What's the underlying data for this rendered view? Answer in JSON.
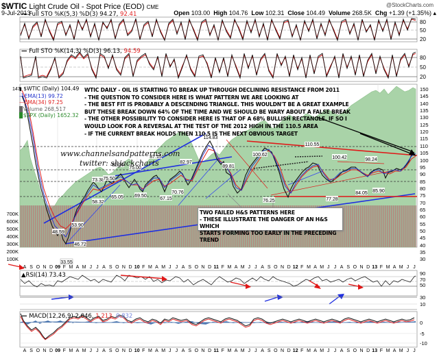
{
  "header": {
    "symbol": "$WTIC",
    "name": "Light Crude Oil - Spot Price (EOD)",
    "exchange": "CME",
    "date": "9-Jul-2013",
    "copyright": "@StockCharts.com",
    "quote": {
      "open_label": "Open",
      "open": "103.00",
      "high_label": "High",
      "high": "104.76",
      "low_label": "Low",
      "low": "102.31",
      "close_label": "Close",
      "close": "104.49",
      "volume_label": "Volume",
      "volume": "268.5K",
      "chg_label": "Chg",
      "chg": "+1.39 (+1.35%)"
    }
  },
  "panels": {
    "sto1": {
      "label": "Full STO %K(5,3) %D(3) 94.27,",
      "label_red": "92.41",
      "ticks": [
        "80",
        "50",
        "20"
      ]
    },
    "sto2": {
      "label": "Full STO %K(14,3) %D(3) 96.13,",
      "label_red": "94.59",
      "ticks": [
        "80",
        "50",
        "20"
      ]
    },
    "main": {
      "legend": {
        "symbol": "$WTIC (Daily) 104.49",
        "ema13": "EMA(13) 99.72",
        "ema34": "EMA(34) 97.25",
        "volume": "Volume 268,517",
        "spx": "$SPX (Daily) 1652.32"
      },
      "left_tick": "147",
      "annotation_lines": [
        "WTIC DAILY - OIL IS STARTING TO BREAK UP THROUGH DECLINING RESISTANCE FROM 2011",
        "- THE QUESTION TO CONSIDER HERE IS WHAT PATTERN WE ARE LOOKING AT",
        "- THE BEST FIT IS PROBABLY A DESCENDING TRIANGLE. THIS WOULDN'T BE A GREAT EXAMPLE",
        "BUT THESE BREAK DOWN 64% OF THE TIME AND WE SHOULD BE WARY ABOUT A FALSE BREAK",
        "- THE OTHER POSSIBILITY TO CONSIDER HERE IS THAT OF A 68% BULLISH RECTANGLE. IF SO I",
        "WOULD LOOK FOR A REVERSAL AT THE TEST OF THE 2012 HIGH IN THE 110.5 AREA",
        "- IF THE CURRENT BREAK HOLDS THEN 110.5 IS THE NEXT OBVIOUS TARGET"
      ],
      "watermark_line1": "www.channelsandpatterns.com",
      "watermark_line2": "twitter: shjackcharts",
      "callout_lines": [
        "TWO FAILED H&S PATTERNS HERE",
        "- THESE ILLUSTRATE THE DANGER OF AN H&S WHICH",
        "STARTS FORMING TOO EARLY IN THE PRECEDING TREND"
      ],
      "price_ticks": [
        "150",
        "145",
        "140",
        "135",
        "130",
        "125",
        "120",
        "115",
        "110",
        "105",
        "100",
        "95",
        "90",
        "85",
        "80",
        "75",
        "70",
        "65",
        "60",
        "55",
        "50",
        "45",
        "40",
        "35",
        "30"
      ],
      "volume_ticks": [
        "700K",
        "600K",
        "500K",
        "400K",
        "300K",
        "200K",
        "100K"
      ]
    },
    "rsi": {
      "label": "RSI(14) 73.43",
      "ticks": [
        "90",
        "70",
        "50",
        "30",
        "10"
      ]
    },
    "macd": {
      "label": "MACD(12,26,9) 2.046,",
      "label_red": "1.213,",
      "label_blue": "0.832",
      "ticks": [
        "0",
        "-5",
        "-10"
      ]
    }
  },
  "x_axis": [
    "A",
    "S",
    "O",
    "N",
    "D",
    "09",
    "F",
    "M",
    "A",
    "M",
    "J",
    "J",
    "A",
    "S",
    "O",
    "N",
    "D",
    "10",
    "F",
    "M",
    "A",
    "M",
    "J",
    "J",
    "A",
    "S",
    "O",
    "N",
    "D",
    "11",
    "F",
    "M",
    "A",
    "M",
    "J",
    "J",
    "A",
    "S",
    "O",
    "N",
    "D",
    "12",
    "F",
    "M",
    "A",
    "M",
    "J",
    "J",
    "A",
    "S",
    "O",
    "N",
    "D",
    "13",
    "F",
    "M",
    "A",
    "M",
    "J",
    "J"
  ],
  "colors": {
    "up": "#000000",
    "ema13": "#2233cc",
    "ema34": "#e02020",
    "spx_fill": "#a9d3a8",
    "volume_up": "#b07070",
    "volume_dn": "#c9a0a0",
    "trend_blue": "#1f2fe0",
    "trend_red": "#e01818",
    "grid": "#cccccc"
  },
  "chart_data": {
    "type": "line",
    "title": "$WTIC Light Crude Oil - Spot Price (EOD) CME, 9-Jul-2013",
    "xlabel": "",
    "ylabel": "Price",
    "ylim": [
      27,
      152
    ],
    "grid": true,
    "legend_position": "top-left",
    "x": [
      "2008-08",
      "2008-12",
      "2009-02",
      "2009-06",
      "2009-10",
      "2010-01",
      "2010-05",
      "2010-08",
      "2010-12",
      "2011-05",
      "2011-06",
      "2011-10",
      "2012-03",
      "2012-06",
      "2012-09",
      "2012-12",
      "2013-04",
      "2013-07"
    ],
    "series": [
      {
        "name": "$WTIC (Daily)",
        "values": [
          115,
          45,
          33.55,
          70,
          76,
          82,
          67,
          72,
          91,
          114.83,
          90,
          76.25,
          110.55,
          77.28,
          100.42,
          84.05,
          85.9,
          104.49
        ]
      }
    ],
    "annotations": [
      {
        "label": "114.83",
        "x": "2011-05",
        "y": 114.83
      },
      {
        "label": "110.55",
        "x": "2012-03",
        "y": 110.55
      },
      {
        "label": "100.62",
        "x": "2011-07",
        "y": 100.62
      },
      {
        "label": "100.42",
        "x": "2012-09",
        "y": 100.42
      },
      {
        "label": "98.24",
        "x": "2013-02",
        "y": 98.24
      },
      {
        "label": "89.81",
        "x": "2011-08",
        "y": 89.81
      },
      {
        "label": "87.15",
        "x": "2010-04",
        "y": 87.15
      },
      {
        "label": "85.90",
        "x": "2013-04",
        "y": 85.9
      },
      {
        "label": "84.05",
        "x": "2012-11",
        "y": 84.05
      },
      {
        "label": "82.97",
        "x": "2010-08",
        "y": 82.97
      },
      {
        "label": "82.00",
        "x": "2010-01",
        "y": 82.0
      },
      {
        "label": "77.28",
        "x": "2012-06",
        "y": 77.28
      },
      {
        "label": "76.25",
        "x": "2011-10",
        "y": 76.25
      },
      {
        "label": "75.00",
        "x": "2009-10",
        "y": 75.0
      },
      {
        "label": "73.38",
        "x": "2009-08",
        "y": 73.38
      },
      {
        "label": "70.76",
        "x": "2010-08",
        "y": 70.76
      },
      {
        "label": "69.50",
        "x": "2010-02",
        "y": 69.5
      },
      {
        "label": "67.15",
        "x": "2010-05",
        "y": 67.15
      },
      {
        "label": "65.05",
        "x": "2009-11",
        "y": 65.05
      },
      {
        "label": "58.32",
        "x": "2009-07",
        "y": 58.32
      },
      {
        "label": "53.90",
        "x": "2009-06",
        "y": 53.9
      },
      {
        "label": "48.59",
        "x": "2009-01",
        "y": 48.59
      },
      {
        "label": "46.72",
        "x": "2009-03",
        "y": 46.72
      },
      {
        "label": "33.55",
        "x": "2009-02",
        "y": 33.55
      }
    ],
    "indicators": {
      "ema13": 99.72,
      "ema34": 97.25,
      "volume": 268517,
      "spx": 1652.32,
      "rsi14": 73.43,
      "sto_5_3": {
        "k": 94.27,
        "d": 92.41
      },
      "sto_14_3": {
        "k": 96.13,
        "d": 94.59
      },
      "macd_12_26_9": {
        "macd": 2.046,
        "signal": 1.213,
        "histogram": 0.832
      }
    }
  }
}
